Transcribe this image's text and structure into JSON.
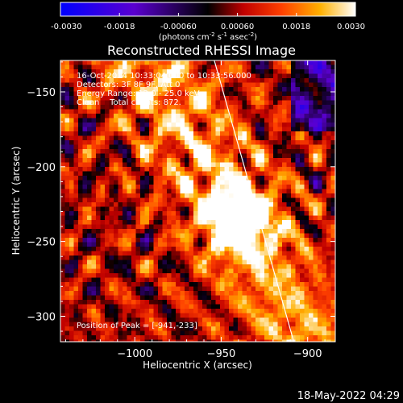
{
  "chart_data": {
    "type": "heatmap",
    "title": "Reconstructed RHESSI Image",
    "xlabel": "Heliocentric X (arcsec)",
    "ylabel": "Heliocentric Y (arcsec)",
    "x_ticks": [
      -1000,
      -950,
      -900
    ],
    "y_ticks": [
      -150,
      -200,
      -250,
      -300
    ],
    "xlim": [
      -1043,
      -884
    ],
    "ylim": [
      -317,
      -129
    ],
    "colorbar": {
      "ticks": [
        "-0.0030",
        "-0.0018",
        "-0.00060",
        "0.00060",
        "0.0018",
        "0.0030"
      ],
      "range": [
        -0.003,
        0.003
      ],
      "unit_prefix": "(photons cm",
      "unit_sup1": "-2",
      "unit_mid": " s",
      "unit_sup2": "-1",
      "unit_mid2": " asec",
      "unit_sup3": "-2",
      "unit_suffix": ")"
    },
    "annotations": [
      "16-Oct-2014 10:33:04.000 to 10:33:56.000",
      "Detectors: 3F 8F 9F, Att 0",
      "Energy Range: 12.0 - 25.0 keV",
      "Clean    Total counts: 872."
    ],
    "peak_label": "Position of Peak = [-941,-233]",
    "peak": {
      "x": -941,
      "y": -233
    },
    "limb_line": [
      [
        -954,
        -129
      ],
      [
        -908,
        -317
      ]
    ],
    "colormap": "red-temperature (blue-purple negative, black-red-yellow-white positive)"
  },
  "footer": {
    "timestamp": "18-May-2022 04:29"
  }
}
